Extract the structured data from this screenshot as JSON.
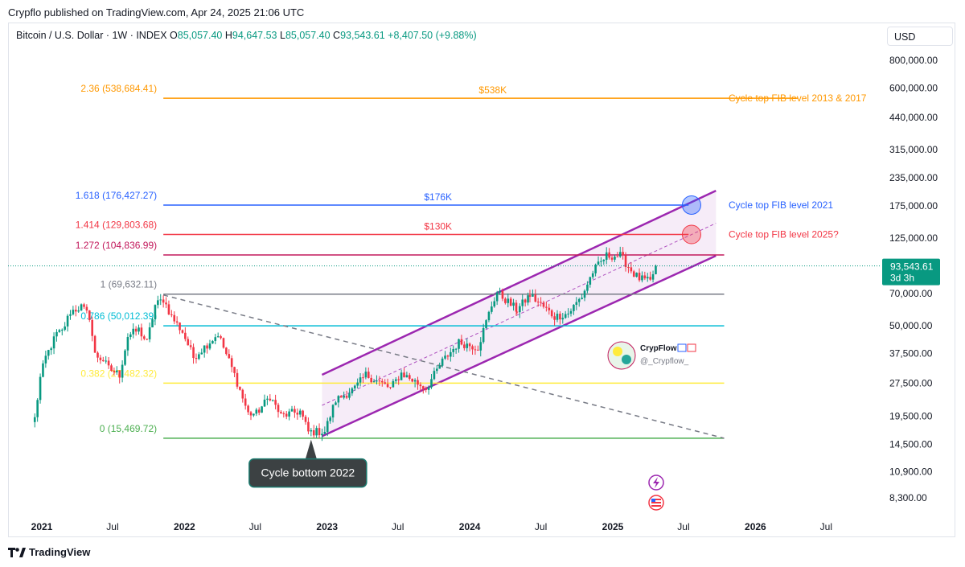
{
  "header": {
    "publisher": "Crypflo published on TradingView.com, Apr 24, 2025 21:06 UTC",
    "symbol": "Bitcoin / U.S. Dollar · 1W · INDEX",
    "ohlc": {
      "o_label": "O",
      "o": "85,057.40",
      "h_label": "H",
      "h": "94,647.53",
      "l_label": "L",
      "l": "85,057.40",
      "c_label": "C",
      "c": "93,543.61",
      "change": "+8,407.50 (+9.88%)"
    },
    "currency": "USD"
  },
  "footer": {
    "brand": "TradingView"
  },
  "watermark": {
    "name": "CrypFlow",
    "handle": "@_Crypflow_"
  },
  "price_tag": {
    "price": "93,543.61",
    "countdown": "3d 3h"
  },
  "colors": {
    "up": "#089981",
    "down": "#f23645",
    "channel": "#9c27b0",
    "channel_fill": "#f3e5f5",
    "fib_236": "#ff9800",
    "fib_1618": "#2962ff",
    "fib_1414": "#f23645",
    "fib_1272": "#c2185b",
    "fib_1": "#787b86",
    "fib_0786": "#00bcd4",
    "fib_0382": "#ffeb3b",
    "fib_0": "#4caf50"
  },
  "chart_data": {
    "type": "candlestick",
    "scale": "log",
    "ylim": [
      6500,
      1000000
    ],
    "y_ticks": [
      "800,000.00",
      "600,000.00",
      "440,000.00",
      "315,000.00",
      "235,000.00",
      "175,000.00",
      "125,000.00",
      "70,000.00",
      "50,000.00",
      "37,500.00",
      "27,500.00",
      "19,500.00",
      "14,500.00",
      "10,900.00",
      "8,300.00"
    ],
    "y_tick_values": [
      800000,
      600000,
      440000,
      315000,
      235000,
      175000,
      125000,
      70000,
      50000,
      37500,
      27500,
      19500,
      14500,
      10900,
      8300
    ],
    "x_ticks": [
      "2021",
      "Jul",
      "2022",
      "Jul",
      "2023",
      "Jul",
      "2024",
      "Jul",
      "2025",
      "Jul",
      "2026",
      "Jul"
    ],
    "x_tick_dates": [
      "2021-01-01",
      "2021-07-01",
      "2022-01-01",
      "2022-07-01",
      "2023-01-01",
      "2023-07-01",
      "2024-01-01",
      "2024-07-01",
      "2025-01-01",
      "2025-07-01",
      "2026-01-01",
      "2026-07-01"
    ],
    "x_tick_bold": [
      true,
      false,
      true,
      false,
      true,
      false,
      true,
      false,
      true,
      false,
      true,
      false
    ],
    "last_price": 93543.61,
    "candle_anchors": [
      [
        "2020-12-14",
        19000
      ],
      [
        "2020-12-28",
        29000
      ],
      [
        "2021-01-11",
        36000
      ],
      [
        "2021-02-08",
        46000
      ],
      [
        "2021-02-22",
        47000
      ],
      [
        "2021-03-15",
        58000
      ],
      [
        "2021-04-12",
        61000
      ],
      [
        "2021-05-03",
        55000
      ],
      [
        "2021-05-17",
        37000
      ],
      [
        "2021-06-07",
        35000
      ],
      [
        "2021-06-21",
        32000
      ],
      [
        "2021-07-19",
        30000
      ],
      [
        "2021-08-09",
        45000
      ],
      [
        "2021-09-06",
        48000
      ],
      [
        "2021-09-27",
        42000
      ],
      [
        "2021-10-18",
        62000
      ],
      [
        "2021-11-08",
        66000
      ],
      [
        "2021-11-29",
        55000
      ],
      [
        "2021-12-27",
        47000
      ],
      [
        "2022-01-24",
        36000
      ],
      [
        "2022-03-28",
        46000
      ],
      [
        "2022-05-09",
        30000
      ],
      [
        "2022-06-13",
        20000
      ],
      [
        "2022-07-04",
        20000
      ],
      [
        "2022-08-08",
        24000
      ],
      [
        "2022-09-05",
        19500
      ],
      [
        "2022-10-24",
        20500
      ],
      [
        "2022-11-14",
        16500
      ],
      [
        "2022-12-26",
        16600
      ],
      [
        "2023-01-23",
        23000
      ],
      [
        "2023-03-13",
        26000
      ],
      [
        "2023-04-10",
        30000
      ],
      [
        "2023-06-12",
        26000
      ],
      [
        "2023-07-10",
        30500
      ],
      [
        "2023-09-11",
        26000
      ],
      [
        "2023-10-23",
        34500
      ],
      [
        "2023-12-04",
        42000
      ],
      [
        "2024-01-22",
        40000
      ],
      [
        "2024-02-26",
        62000
      ],
      [
        "2024-03-11",
        71000
      ],
      [
        "2024-05-01",
        59000
      ],
      [
        "2024-06-03",
        69000
      ],
      [
        "2024-08-05",
        55000
      ],
      [
        "2024-09-09",
        57000
      ],
      [
        "2024-10-14",
        68000
      ],
      [
        "2024-11-11",
        88000
      ],
      [
        "2024-12-16",
        104000
      ],
      [
        "2025-01-20",
        104000
      ],
      [
        "2025-02-24",
        86000
      ],
      [
        "2025-03-10",
        82000
      ],
      [
        "2025-04-07",
        79000
      ],
      [
        "2025-04-21",
        93543
      ]
    ],
    "fib_levels": [
      {
        "label": "2.36 (538,684.41)",
        "ratio": 2.36,
        "value": 538684.41,
        "color_key": "fib_236",
        "text": "$538K",
        "side_label": "Cycle top FIB level 2013 & 2017",
        "start": "2021-11-08",
        "end": "2026-04-20"
      },
      {
        "label": "1.618 (176,427.27)",
        "ratio": 1.618,
        "value": 176427.27,
        "color_key": "fib_1618",
        "text": "$176K",
        "side_label": "Cycle top FIB level 2021",
        "start": "2021-11-08",
        "end": "2025-07-14"
      },
      {
        "label": "1.414 (129,803.68)",
        "ratio": 1.414,
        "value": 129803.68,
        "color_key": "fib_1414",
        "text": "$130K",
        "side_label": "Cycle top FIB level 2025?",
        "start": "2021-11-08",
        "end": "2025-07-14"
      },
      {
        "label": "1.272 (104,836.99)",
        "ratio": 1.272,
        "value": 104836.99,
        "color_key": "fib_1272",
        "text": "",
        "side_label": "",
        "start": "2021-11-08",
        "end": "2025-10-13"
      },
      {
        "label": "1 (69,632.11)",
        "ratio": 1,
        "value": 69632.11,
        "color_key": "fib_1",
        "text": "",
        "side_label": "",
        "start": "2021-11-08",
        "end": "2025-10-13"
      },
      {
        "label": "0.786 (50,012.39)",
        "ratio": 0.786,
        "value": 50012.39,
        "color_key": "fib_0786",
        "text": "",
        "side_label": "",
        "start": "2021-11-08",
        "end": "2025-10-13"
      },
      {
        "label": "0.382 (27,482.32)",
        "ratio": 0.382,
        "value": 27482.32,
        "color_key": "fib_0382",
        "text": "",
        "side_label": "",
        "start": "2021-11-08",
        "end": "2025-10-13"
      },
      {
        "label": "0 (15,469.72)",
        "ratio": 0,
        "value": 15469.72,
        "color_key": "fib_0",
        "text": "",
        "side_label": "",
        "start": "2021-11-08",
        "end": "2025-10-13"
      }
    ],
    "channel": {
      "lower": [
        [
          "2022-12-19",
          15800
        ],
        [
          "2025-09-22",
          104000
        ]
      ],
      "upper": [
        [
          "2022-12-19",
          30000
        ],
        [
          "2025-09-22",
          205000
        ]
      ],
      "mid": [
        [
          "2022-12-19",
          21800
        ],
        [
          "2025-09-22",
          146000
        ]
      ]
    },
    "trend_line": [
      [
        "2021-11-08",
        69000
      ],
      [
        "2025-10-13",
        15469
      ]
    ],
    "markers": [
      {
        "date": "2025-07-01",
        "value": 176427,
        "color_key": "fib_1618"
      },
      {
        "date": "2025-07-01",
        "value": 129800,
        "color_key": "fib_1414"
      }
    ],
    "annotations": [
      {
        "text": "Cycle bottom 2022",
        "date": "2022-11-21",
        "value": 15500
      }
    ]
  }
}
